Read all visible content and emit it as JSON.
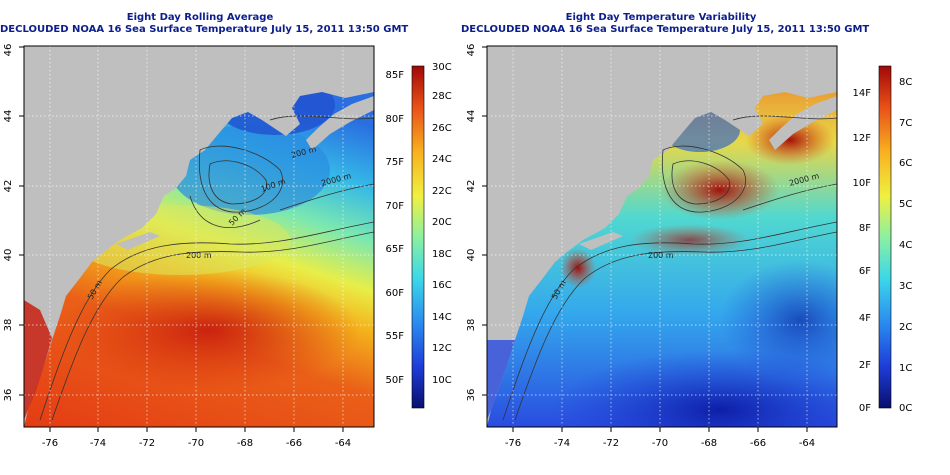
{
  "panels": [
    {
      "title_line1": "Eight Day Rolling Average",
      "title_line2": "DECLOUDED NOAA 16 Sea Surface Temperature July 15, 2011 13:50 GMT",
      "x_ticks": [
        "-76",
        "-74",
        "-72",
        "-70",
        "-68",
        "-66",
        "-64"
      ],
      "y_ticks": [
        "36",
        "38",
        "40",
        "42",
        "44",
        "46"
      ],
      "contour_labels": [
        "50 m",
        "200 m",
        "50 m",
        "100 m",
        "200 m",
        "2000 m"
      ],
      "colorbar": {
        "colors": [
          "#08106e",
          "#1e3cd8",
          "#2a8cf0",
          "#3cd8e8",
          "#8cf0a0",
          "#f0f040",
          "#f8b020",
          "#e85018",
          "#a00808"
        ],
        "celsius": [
          "10C",
          "12C",
          "14C",
          "16C",
          "18C",
          "20C",
          "22C",
          "24C",
          "26C",
          "28C",
          "30C"
        ],
        "fahrenheit": [
          "50F",
          "55F",
          "60F",
          "65F",
          "70F",
          "75F",
          "80F",
          "85F"
        ]
      }
    },
    {
      "title_line1": "Eight Day Temperature Variability",
      "title_line2": "DECLOUDED NOAA 16 Sea Surface Temperature July 15, 2011 13:50 GMT",
      "x_ticks": [
        "-76",
        "-74",
        "-72",
        "-70",
        "-68",
        "-66",
        "-64"
      ],
      "y_ticks": [
        "36",
        "38",
        "40",
        "42",
        "44",
        "46"
      ],
      "contour_labels": [
        "50 m",
        "200 m",
        "2000 m"
      ],
      "colorbar": {
        "colors": [
          "#08106e",
          "#1e3cd8",
          "#2a8cf0",
          "#3cd8e8",
          "#8cf0a0",
          "#f0f040",
          "#f8b020",
          "#e85018",
          "#a00808"
        ],
        "celsius": [
          "0C",
          "1C",
          "2C",
          "3C",
          "4C",
          "5C",
          "6C",
          "7C",
          "8C"
        ],
        "fahrenheit": [
          "0F",
          "2F",
          "4F",
          "6F",
          "8F",
          "10F",
          "12F",
          "14F"
        ]
      }
    }
  ]
}
